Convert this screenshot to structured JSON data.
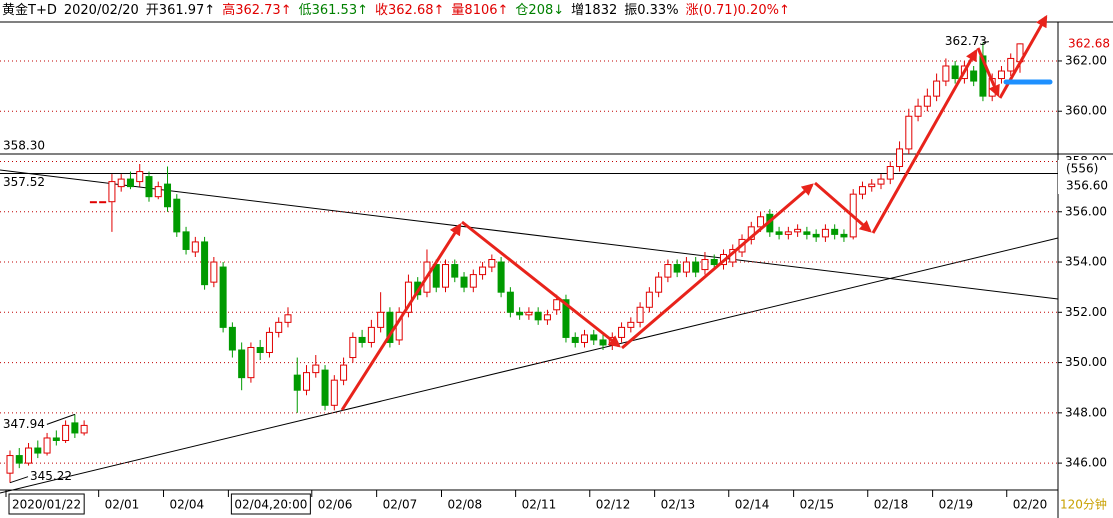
{
  "header": {
    "items": [
      {
        "text": "黄金T+D",
        "color": "#000000"
      },
      {
        "text": "2020/02/20",
        "color": "#000000"
      },
      {
        "text": "开361.97",
        "arrow": "↑",
        "color": "#000000"
      },
      {
        "text": "高362.73",
        "arrow": "↑",
        "color": "#e00000"
      },
      {
        "text": "低361.53",
        "arrow": "↑",
        "color": "#008000"
      },
      {
        "text": "收362.68",
        "arrow": "↑",
        "color": "#e00000"
      },
      {
        "text": "量8106",
        "arrow": "↑",
        "color": "#e00000"
      },
      {
        "text": "仓208",
        "arrow": "↓",
        "color": "#008000"
      },
      {
        "text": "增1832",
        "color": "#000000"
      },
      {
        "text": "振0.33%",
        "color": "#000000"
      },
      {
        "text": "涨(0.71)0.20%",
        "arrow": "↑",
        "color": "#e00000"
      }
    ]
  },
  "chart_data": {
    "type": "candlestick",
    "categories": [
      "2020/01/22",
      null,
      null,
      null,
      null,
      null,
      null,
      null,
      null,
      null,
      "02/01",
      null,
      null,
      null,
      null,
      null,
      null,
      "02/04",
      null,
      null,
      null,
      null,
      null,
      null,
      "02/04,20:00",
      null,
      null,
      null,
      null,
      null,
      null,
      null,
      null,
      "02/06",
      null,
      null,
      null,
      null,
      null,
      null,
      "02/07",
      null,
      null,
      null,
      null,
      null,
      null,
      "02/08",
      null,
      null,
      null,
      null,
      null,
      null,
      null,
      "02/11",
      null,
      null,
      null,
      null,
      null,
      null,
      null,
      "02/12",
      null,
      null,
      null,
      null,
      null,
      null,
      "02/13",
      null,
      null,
      null,
      null,
      null,
      null,
      null,
      "02/14",
      null,
      null,
      null,
      null,
      null,
      null,
      "02/15",
      null,
      null,
      null,
      null,
      null,
      null,
      null,
      "02/18",
      null,
      null,
      null,
      null,
      null,
      null,
      "02/19",
      null,
      null,
      null,
      null,
      null,
      null,
      null,
      "02/20",
      null
    ],
    "open": [
      345.6,
      346.3,
      346.0,
      346.6,
      346.4,
      347.0,
      346.9,
      347.6,
      347.2,
      356.4,
      356.4,
      356.4,
      357.0,
      357.3,
      357.2,
      357.4,
      356.6,
      357.1,
      356.5,
      355.2,
      354.4,
      354.8,
      353.2,
      353.8,
      351.4,
      350.5,
      349.4,
      350.6,
      350.4,
      351.2,
      351.6,
      349.5,
      348.9,
      349.6,
      349.7,
      348.3,
      349.3,
      350.2,
      351.0,
      350.8,
      351.4,
      352.0,
      350.9,
      352.0,
      353.2,
      352.8,
      353.9,
      353.0,
      353.9,
      353.4,
      353.0,
      353.5,
      353.8,
      354.0,
      352.8,
      352.0,
      351.9,
      352.0,
      351.7,
      352.1,
      352.5,
      351.0,
      350.8,
      351.1,
      350.9,
      350.7,
      351.0,
      351.4,
      351.6,
      352.2,
      352.8,
      353.4,
      353.9,
      353.6,
      354.0,
      353.7,
      354.1,
      353.9,
      354.0,
      354.4,
      354.9,
      355.4,
      355.9,
      355.2,
      355.1,
      355.2,
      355.2,
      355.1,
      355.0,
      355.3,
      355.1,
      355.0,
      356.7,
      357.0,
      357.1,
      357.3,
      357.8,
      358.5,
      359.8,
      360.2,
      360.6,
      361.2,
      361.8,
      361.3,
      361.6,
      362.2,
      360.6,
      361.3,
      361.6,
      361.97
    ],
    "high": [
      346.5,
      346.6,
      346.8,
      346.9,
      347.2,
      347.3,
      347.7,
      347.94,
      347.7,
      356.4,
      356.4,
      357.5,
      357.5,
      357.6,
      357.9,
      357.6,
      357.2,
      357.8,
      356.7,
      355.4,
      355.0,
      355.0,
      354.2,
      354.0,
      351.6,
      350.8,
      350.8,
      350.9,
      351.4,
      351.8,
      352.2,
      350.2,
      349.9,
      350.3,
      349.9,
      349.5,
      350.2,
      351.2,
      351.3,
      351.7,
      352.8,
      352.2,
      352.2,
      353.5,
      353.4,
      354.5,
      354.1,
      354.1,
      354.1,
      353.6,
      353.7,
      354.0,
      354.3,
      354.2,
      353.0,
      352.2,
      352.2,
      352.2,
      352.1,
      352.7,
      352.7,
      351.2,
      351.3,
      351.3,
      351.1,
      351.2,
      351.6,
      351.8,
      352.4,
      353.0,
      353.6,
      354.1,
      354.1,
      354.2,
      354.2,
      354.4,
      354.3,
      354.5,
      354.7,
      355.1,
      355.6,
      356.0,
      356.1,
      355.4,
      355.4,
      355.5,
      355.4,
      355.3,
      355.5,
      355.5,
      355.3,
      356.9,
      357.2,
      357.3,
      357.5,
      358.0,
      358.8,
      360.1,
      360.5,
      360.9,
      361.5,
      362.1,
      362.0,
      362.0,
      361.8,
      362.73,
      361.5,
      361.8,
      362.3,
      362.7
    ],
    "low": [
      345.22,
      345.8,
      345.9,
      346.2,
      346.3,
      346.7,
      346.8,
      347.0,
      347.1,
      356.4,
      356.4,
      355.2,
      356.8,
      356.9,
      357.0,
      356.4,
      356.5,
      356.0,
      355.0,
      354.3,
      354.2,
      352.9,
      353.0,
      351.2,
      350.2,
      348.9,
      349.2,
      350.1,
      350.2,
      351.0,
      351.4,
      348.0,
      348.7,
      349.4,
      348.1,
      348.1,
      349.1,
      350.0,
      350.6,
      350.6,
      351.2,
      350.6,
      350.7,
      351.8,
      352.5,
      352.6,
      352.8,
      352.8,
      353.2,
      352.8,
      352.8,
      353.3,
      353.6,
      352.6,
      351.8,
      351.7,
      351.7,
      351.5,
      351.5,
      351.9,
      350.8,
      350.6,
      350.6,
      350.7,
      350.5,
      350.5,
      350.8,
      351.2,
      351.4,
      352.0,
      352.6,
      353.2,
      353.4,
      353.4,
      353.4,
      353.5,
      353.7,
      353.7,
      353.8,
      354.2,
      354.7,
      355.2,
      355.0,
      354.9,
      354.9,
      355.0,
      354.9,
      354.8,
      354.8,
      354.9,
      354.8,
      354.9,
      356.5,
      356.8,
      356.9,
      357.1,
      357.6,
      358.3,
      359.6,
      360.0,
      360.4,
      361.0,
      361.1,
      361.1,
      361.0,
      360.4,
      360.4,
      361.1,
      361.4,
      361.53
    ],
    "close": [
      346.3,
      346.0,
      346.6,
      346.4,
      347.0,
      346.9,
      347.5,
      347.2,
      347.5,
      356.4,
      356.4,
      357.2,
      357.3,
      357.0,
      357.6,
      356.6,
      357.0,
      356.2,
      355.2,
      354.5,
      354.8,
      353.1,
      354.0,
      351.4,
      350.5,
      349.4,
      350.6,
      350.4,
      351.2,
      351.6,
      351.9,
      348.9,
      349.6,
      349.9,
      348.3,
      349.3,
      349.9,
      351.0,
      350.8,
      351.4,
      352.0,
      350.8,
      352.0,
      353.2,
      352.7,
      354.0,
      353.0,
      353.9,
      353.4,
      353.0,
      353.5,
      353.8,
      354.1,
      352.8,
      352.0,
      351.9,
      352.0,
      351.7,
      351.9,
      352.5,
      351.0,
      350.8,
      351.1,
      350.9,
      350.7,
      351.0,
      351.4,
      351.6,
      352.2,
      352.8,
      353.4,
      353.9,
      353.6,
      354.0,
      353.6,
      354.1,
      353.9,
      354.3,
      354.5,
      354.9,
      355.4,
      355.8,
      355.2,
      355.1,
      355.2,
      355.3,
      355.1,
      355.0,
      355.3,
      355.1,
      355.0,
      356.7,
      357.0,
      357.1,
      357.3,
      357.8,
      358.5,
      359.8,
      360.2,
      360.6,
      361.2,
      361.8,
      361.3,
      361.8,
      361.2,
      360.6,
      361.3,
      361.6,
      362.1,
      362.68
    ],
    "up_color": "#e00000",
    "down_color": "#009a00",
    "boxed_categories": [
      0,
      24
    ],
    "ylim": [
      344.93,
      363.55
    ],
    "yticks": [
      {
        "value": 346,
        "label": "346.00"
      },
      {
        "value": 348,
        "label": "348.00"
      },
      {
        "value": 350,
        "label": "350.00"
      },
      {
        "value": 352,
        "label": "352.00"
      },
      {
        "value": 354,
        "label": "354.00"
      },
      {
        "value": 356,
        "label": "356.00"
      },
      {
        "value": 358,
        "label": "358.00"
      },
      {
        "value": 360,
        "label": "360.00"
      },
      {
        "value": 362,
        "label": "362.00"
      }
    ],
    "grid": true,
    "reference_lines": [
      {
        "value": 358.3,
        "label": "358.30"
      },
      {
        "value": 357.52,
        "label": "357.52"
      }
    ],
    "annotations": [
      {
        "value": 362.73,
        "label": "362.73"
      },
      {
        "value": 347.94,
        "label": "347.94"
      },
      {
        "value": 345.22,
        "label": "345.22"
      }
    ],
    "last_price": {
      "value": 362.68,
      "label": "362.68"
    },
    "axis_box": [
      "(556)",
      "356.60"
    ],
    "period": "120分钟"
  }
}
